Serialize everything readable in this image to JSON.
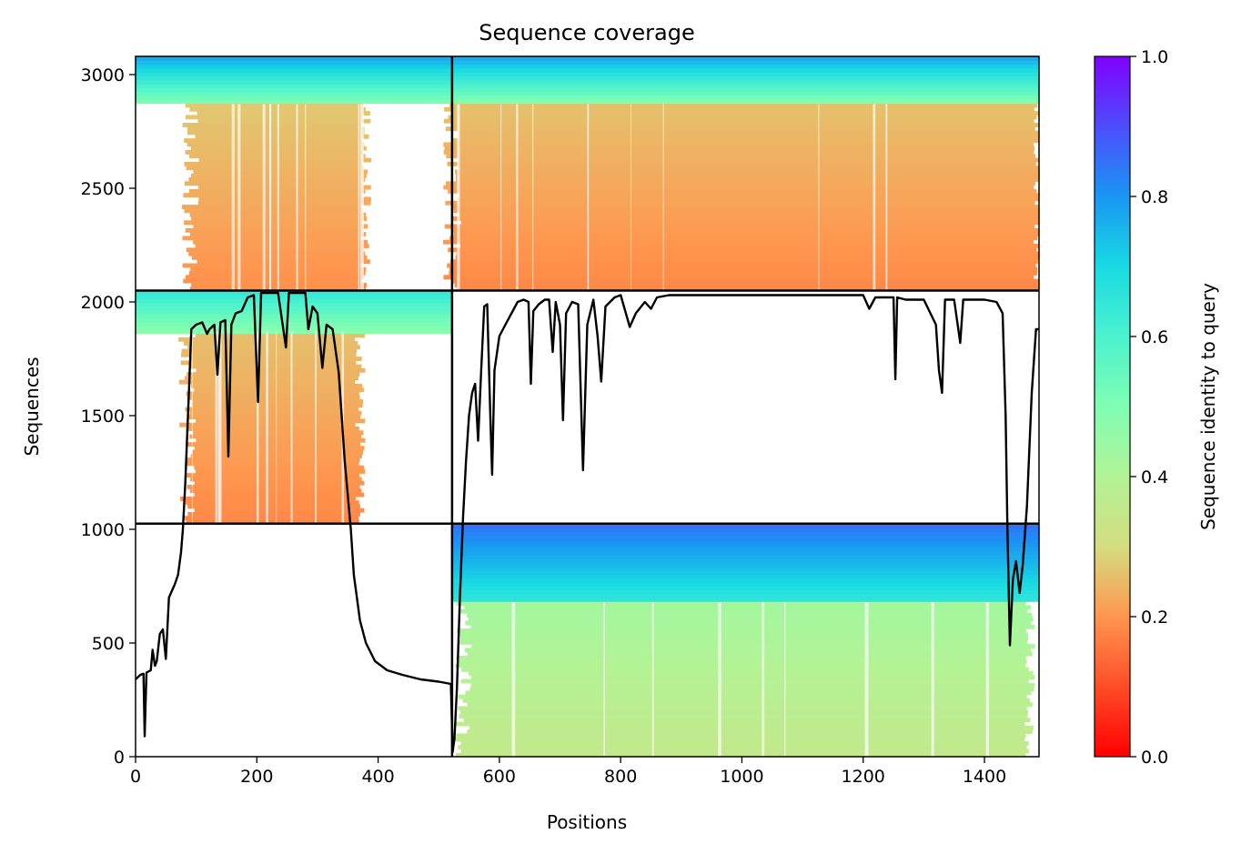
{
  "chart_data": {
    "type": "heatmap",
    "title": "Sequence coverage",
    "xlabel": "Positions",
    "ylabel": "Sequences",
    "xlim": [
      0,
      1490
    ],
    "ylim": [
      0,
      3080
    ],
    "x_ticks": [
      0,
      200,
      400,
      600,
      800,
      1000,
      1200,
      1400
    ],
    "y_ticks": [
      0,
      500,
      1000,
      1500,
      2000,
      2500,
      3000
    ],
    "grid": false,
    "colorbar": {
      "label": "Sequence identity to query",
      "range": [
        0,
        1
      ],
      "ticks": [
        "0.0",
        "0.2",
        "0.4",
        "0.6",
        "0.8",
        "1.0"
      ],
      "colormap": "rainbow"
    },
    "domain_boundaries": {
      "x": 522,
      "y": [
        1025,
        2050
      ]
    },
    "blocks": [
      {
        "name": "top-left",
        "x": [
          0,
          522
        ],
        "y": [
          2050,
          3080
        ],
        "seq_x": [
          90,
          380
        ],
        "identity_top": 0.78,
        "identity_mid": 0.24,
        "low_identity_from": 2870
      },
      {
        "name": "top-right",
        "x": [
          522,
          1490
        ],
        "y": [
          2050,
          3080
        ],
        "seq_x": [
          522,
          1490
        ],
        "identity_top": 0.78,
        "identity_mid": 0.23,
        "low_identity_from": 2870
      },
      {
        "name": "middle-left",
        "x": [
          0,
          522
        ],
        "y": [
          1025,
          2050
        ],
        "seq_x": [
          85,
          370
        ],
        "identity_top": 0.65,
        "identity_mid": 0.23,
        "low_identity_from": 1870
      },
      {
        "name": "bottom-right",
        "x": [
          522,
          1490
        ],
        "y": [
          0,
          1025
        ],
        "seq_x": [
          540,
          1475
        ],
        "identity_top": 0.85,
        "identity_mid": 0.4,
        "low_identity_from": 680
      }
    ],
    "coverage_line": [
      [
        0,
        340
      ],
      [
        8,
        360
      ],
      [
        13,
        365
      ],
      [
        15,
        90
      ],
      [
        18,
        370
      ],
      [
        25,
        380
      ],
      [
        28,
        470
      ],
      [
        32,
        400
      ],
      [
        35,
        420
      ],
      [
        40,
        540
      ],
      [
        45,
        560
      ],
      [
        50,
        430
      ],
      [
        55,
        700
      ],
      [
        60,
        730
      ],
      [
        65,
        760
      ],
      [
        70,
        800
      ],
      [
        75,
        900
      ],
      [
        78,
        1000
      ],
      [
        82,
        1200
      ],
      [
        88,
        1600
      ],
      [
        92,
        1880
      ],
      [
        100,
        1900
      ],
      [
        110,
        1910
      ],
      [
        118,
        1860
      ],
      [
        122,
        1880
      ],
      [
        130,
        1900
      ],
      [
        135,
        1680
      ],
      [
        140,
        1910
      ],
      [
        148,
        1920
      ],
      [
        153,
        1320
      ],
      [
        158,
        1900
      ],
      [
        165,
        1950
      ],
      [
        175,
        1960
      ],
      [
        185,
        2020
      ],
      [
        195,
        2030
      ],
      [
        202,
        1560
      ],
      [
        207,
        2040
      ],
      [
        220,
        2040
      ],
      [
        235,
        2040
      ],
      [
        248,
        1800
      ],
      [
        253,
        2040
      ],
      [
        265,
        2040
      ],
      [
        280,
        2040
      ],
      [
        285,
        1880
      ],
      [
        292,
        1980
      ],
      [
        300,
        1950
      ],
      [
        308,
        1710
      ],
      [
        315,
        1900
      ],
      [
        325,
        1880
      ],
      [
        335,
        1690
      ],
      [
        345,
        1300
      ],
      [
        355,
        1000
      ],
      [
        360,
        800
      ],
      [
        370,
        600
      ],
      [
        380,
        500
      ],
      [
        395,
        420
      ],
      [
        415,
        380
      ],
      [
        440,
        360
      ],
      [
        470,
        340
      ],
      [
        500,
        330
      ],
      [
        520,
        320
      ],
      [
        523,
        20
      ],
      [
        526,
        80
      ],
      [
        530,
        300
      ],
      [
        535,
        700
      ],
      [
        540,
        1050
      ],
      [
        545,
        1300
      ],
      [
        550,
        1500
      ],
      [
        555,
        1600
      ],
      [
        560,
        1640
      ],
      [
        565,
        1390
      ],
      [
        570,
        1700
      ],
      [
        575,
        1980
      ],
      [
        580,
        1990
      ],
      [
        585,
        1500
      ],
      [
        588,
        1240
      ],
      [
        592,
        1700
      ],
      [
        600,
        1850
      ],
      [
        610,
        1900
      ],
      [
        620,
        1950
      ],
      [
        630,
        2000
      ],
      [
        640,
        2010
      ],
      [
        648,
        2000
      ],
      [
        652,
        1640
      ],
      [
        656,
        1960
      ],
      [
        665,
        1990
      ],
      [
        675,
        2010
      ],
      [
        682,
        2010
      ],
      [
        688,
        1780
      ],
      [
        693,
        2000
      ],
      [
        700,
        1900
      ],
      [
        705,
        1480
      ],
      [
        710,
        1950
      ],
      [
        720,
        2000
      ],
      [
        730,
        1990
      ],
      [
        738,
        1260
      ],
      [
        745,
        1900
      ],
      [
        755,
        2010
      ],
      [
        762,
        1850
      ],
      [
        768,
        1650
      ],
      [
        775,
        1980
      ],
      [
        790,
        2020
      ],
      [
        800,
        2030
      ],
      [
        815,
        1890
      ],
      [
        825,
        1950
      ],
      [
        840,
        2000
      ],
      [
        850,
        1970
      ],
      [
        860,
        2020
      ],
      [
        880,
        2030
      ],
      [
        900,
        2030
      ],
      [
        930,
        2030
      ],
      [
        960,
        2030
      ],
      [
        990,
        2030
      ],
      [
        1020,
        2030
      ],
      [
        1050,
        2030
      ],
      [
        1080,
        2030
      ],
      [
        1110,
        2030
      ],
      [
        1140,
        2030
      ],
      [
        1170,
        2030
      ],
      [
        1200,
        2030
      ],
      [
        1210,
        1970
      ],
      [
        1220,
        2020
      ],
      [
        1250,
        2020
      ],
      [
        1253,
        1660
      ],
      [
        1256,
        2020
      ],
      [
        1270,
        2010
      ],
      [
        1300,
        2010
      ],
      [
        1320,
        1900
      ],
      [
        1325,
        1700
      ],
      [
        1330,
        1600
      ],
      [
        1335,
        2010
      ],
      [
        1350,
        2010
      ],
      [
        1360,
        1820
      ],
      [
        1365,
        2010
      ],
      [
        1380,
        2010
      ],
      [
        1400,
        2010
      ],
      [
        1420,
        2000
      ],
      [
        1430,
        1950
      ],
      [
        1435,
        1500
      ],
      [
        1438,
        1000
      ],
      [
        1442,
        490
      ],
      [
        1447,
        780
      ],
      [
        1452,
        860
      ],
      [
        1458,
        720
      ],
      [
        1463,
        840
      ],
      [
        1470,
        1100
      ],
      [
        1478,
        1600
      ],
      [
        1485,
        1880
      ],
      [
        1490,
        1880
      ]
    ]
  }
}
